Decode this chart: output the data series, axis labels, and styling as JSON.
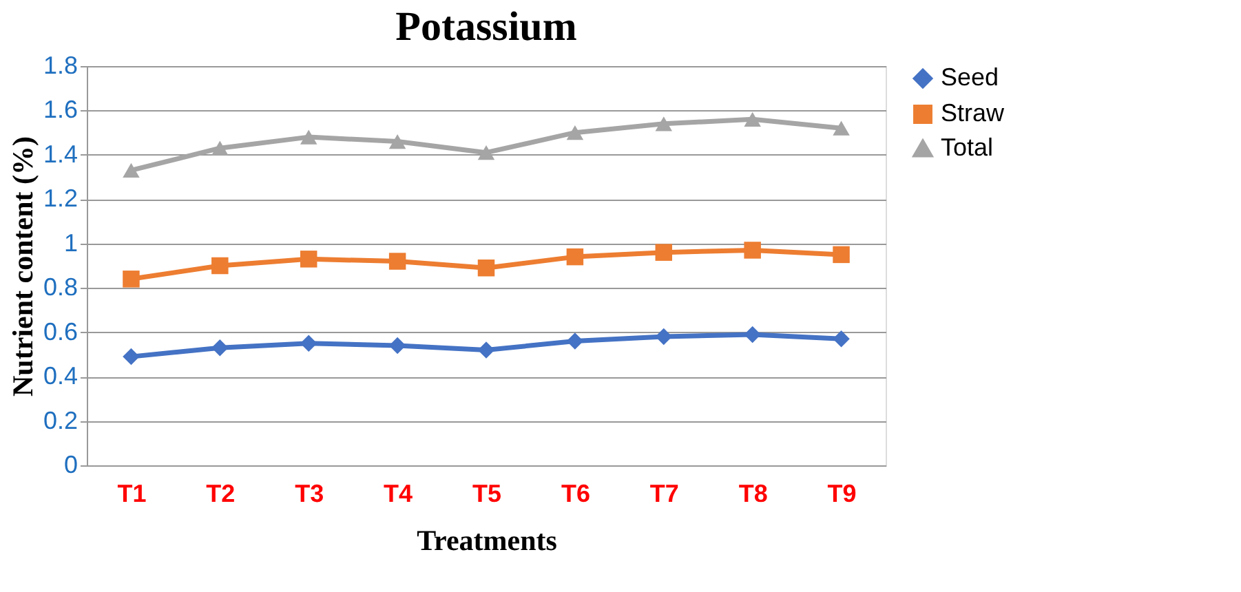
{
  "chart_data": {
    "type": "line",
    "title": "Potassium",
    "xlabel": "Treatments",
    "ylabel": "Nutrient content (%)",
    "categories": [
      "T1",
      "T2",
      "T3",
      "T4",
      "T5",
      "T6",
      "T7",
      "T8",
      "T9"
    ],
    "series": [
      {
        "name": "Seed",
        "color": "#4472c4",
        "marker": "diamond",
        "values": [
          0.49,
          0.53,
          0.55,
          0.54,
          0.52,
          0.56,
          0.58,
          0.59,
          0.57
        ]
      },
      {
        "name": "Straw",
        "color": "#ed7d31",
        "marker": "square",
        "values": [
          0.84,
          0.9,
          0.93,
          0.92,
          0.89,
          0.94,
          0.96,
          0.97,
          0.95
        ]
      },
      {
        "name": "Total",
        "color": "#a5a5a5",
        "marker": "triangle",
        "values": [
          1.33,
          1.43,
          1.48,
          1.46,
          1.41,
          1.5,
          1.54,
          1.56,
          1.52
        ]
      }
    ],
    "ylim": [
      0,
      1.8
    ],
    "yticks": [
      0,
      0.2,
      0.4,
      0.6,
      0.8,
      1,
      1.2,
      1.4,
      1.6,
      1.8
    ],
    "grid": "y",
    "legend": "right",
    "line_style": "solid"
  }
}
